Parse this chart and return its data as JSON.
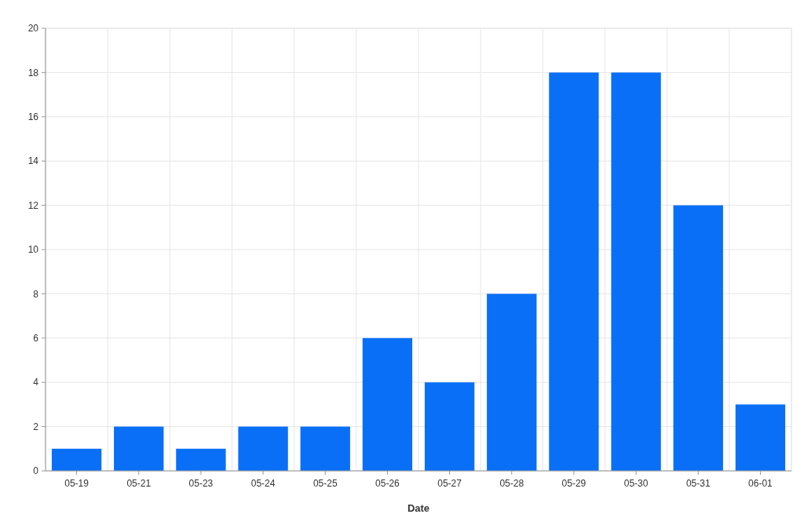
{
  "chart_data": {
    "type": "bar",
    "xlabel": "Date",
    "categories": [
      "05-19",
      "05-21",
      "05-23",
      "05-24",
      "05-25",
      "05-26",
      "05-27",
      "05-28",
      "05-29",
      "05-30",
      "05-31",
      "06-01"
    ],
    "values": [
      1,
      2,
      1,
      2,
      2,
      6,
      4,
      8,
      18,
      18,
      12,
      3
    ],
    "color": "#0a6ff7",
    "ylim": [
      0,
      20
    ],
    "yticks": [
      0,
      2,
      4,
      6,
      8,
      10,
      12,
      14,
      16,
      18,
      20
    ],
    "grid": true
  }
}
